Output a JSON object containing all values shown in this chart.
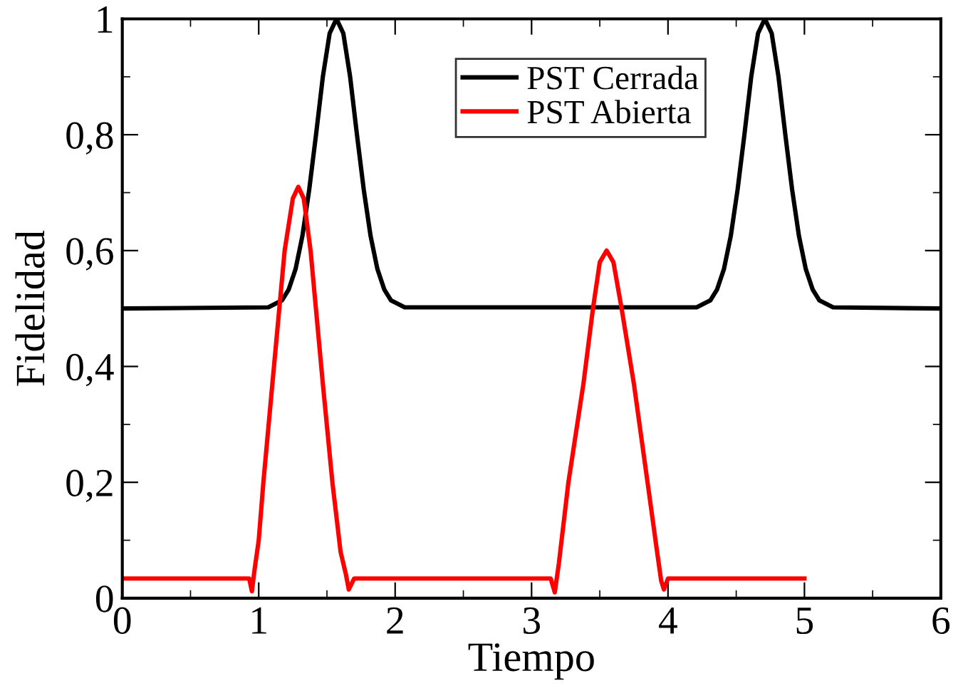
{
  "chart_data": {
    "type": "line",
    "xlabel": "Tiempo",
    "ylabel": "Fidelidad",
    "xlim": [
      0,
      6
    ],
    "xticks": [
      0,
      1,
      2,
      3,
      4,
      5,
      6
    ],
    "ylim": [
      0,
      1
    ],
    "yticks": [
      0,
      {
        "value": 0.2,
        "label": "0,2"
      },
      {
        "value": 0.4,
        "label": "0,4"
      },
      {
        "value": 0.6,
        "label": "0,6"
      },
      {
        "value": 0.8,
        "label": "0,8"
      },
      1
    ],
    "grid": false,
    "legend": "top",
    "marker": "none",
    "line_style": "solid",
    "series": [
      {
        "name": "PST Cerrada",
        "color": "#000000",
        "x": [
          0,
          1.07,
          1.17,
          1.22,
          1.27,
          1.32,
          1.37,
          1.42,
          1.47,
          1.52,
          1.57,
          1.62,
          1.67,
          1.72,
          1.77,
          1.82,
          1.87,
          1.92,
          1.97,
          2.07,
          4.21,
          4.31,
          4.36,
          4.41,
          4.46,
          4.51,
          4.56,
          4.61,
          4.66,
          4.71,
          4.76,
          4.81,
          4.86,
          4.91,
          4.96,
          5.01,
          5.06,
          5.11,
          5.21,
          6
        ],
        "values": [
          0.5,
          0.502,
          0.514,
          0.533,
          0.568,
          0.625,
          0.705,
          0.8,
          0.9,
          0.975,
          1,
          0.975,
          0.9,
          0.8,
          0.705,
          0.625,
          0.568,
          0.533,
          0.514,
          0.502,
          0.502,
          0.514,
          0.533,
          0.568,
          0.625,
          0.705,
          0.8,
          0.9,
          0.975,
          1,
          0.975,
          0.9,
          0.8,
          0.705,
          0.625,
          0.568,
          0.533,
          0.514,
          0.502,
          0.5
        ]
      },
      {
        "name": "PST Abierta",
        "color": "#ff0000",
        "x": [
          0,
          0.93,
          0.95,
          0.97,
          1.0,
          1.034,
          1.1,
          1.19,
          1.25,
          1.29,
          1.33,
          1.38,
          1.47,
          1.54,
          1.6,
          1.64,
          1.66,
          1.7,
          3.14,
          3.17,
          3.2,
          3.27,
          3.38,
          3.45,
          3.5,
          3.55,
          3.6,
          3.66,
          3.75,
          3.85,
          3.92,
          3.95,
          3.97,
          4.0,
          5
        ],
        "values": [
          0.034,
          0.034,
          0.012,
          0.05,
          0.1,
          0.2,
          0.37,
          0.6,
          0.69,
          0.71,
          0.69,
          0.6,
          0.37,
          0.2,
          0.08,
          0.04,
          0.015,
          0.034,
          0.034,
          0.01,
          0.06,
          0.2,
          0.37,
          0.5,
          0.58,
          0.6,
          0.58,
          0.5,
          0.37,
          0.2,
          0.08,
          0.03,
          0.015,
          0.034,
          0.034
        ]
      }
    ]
  }
}
